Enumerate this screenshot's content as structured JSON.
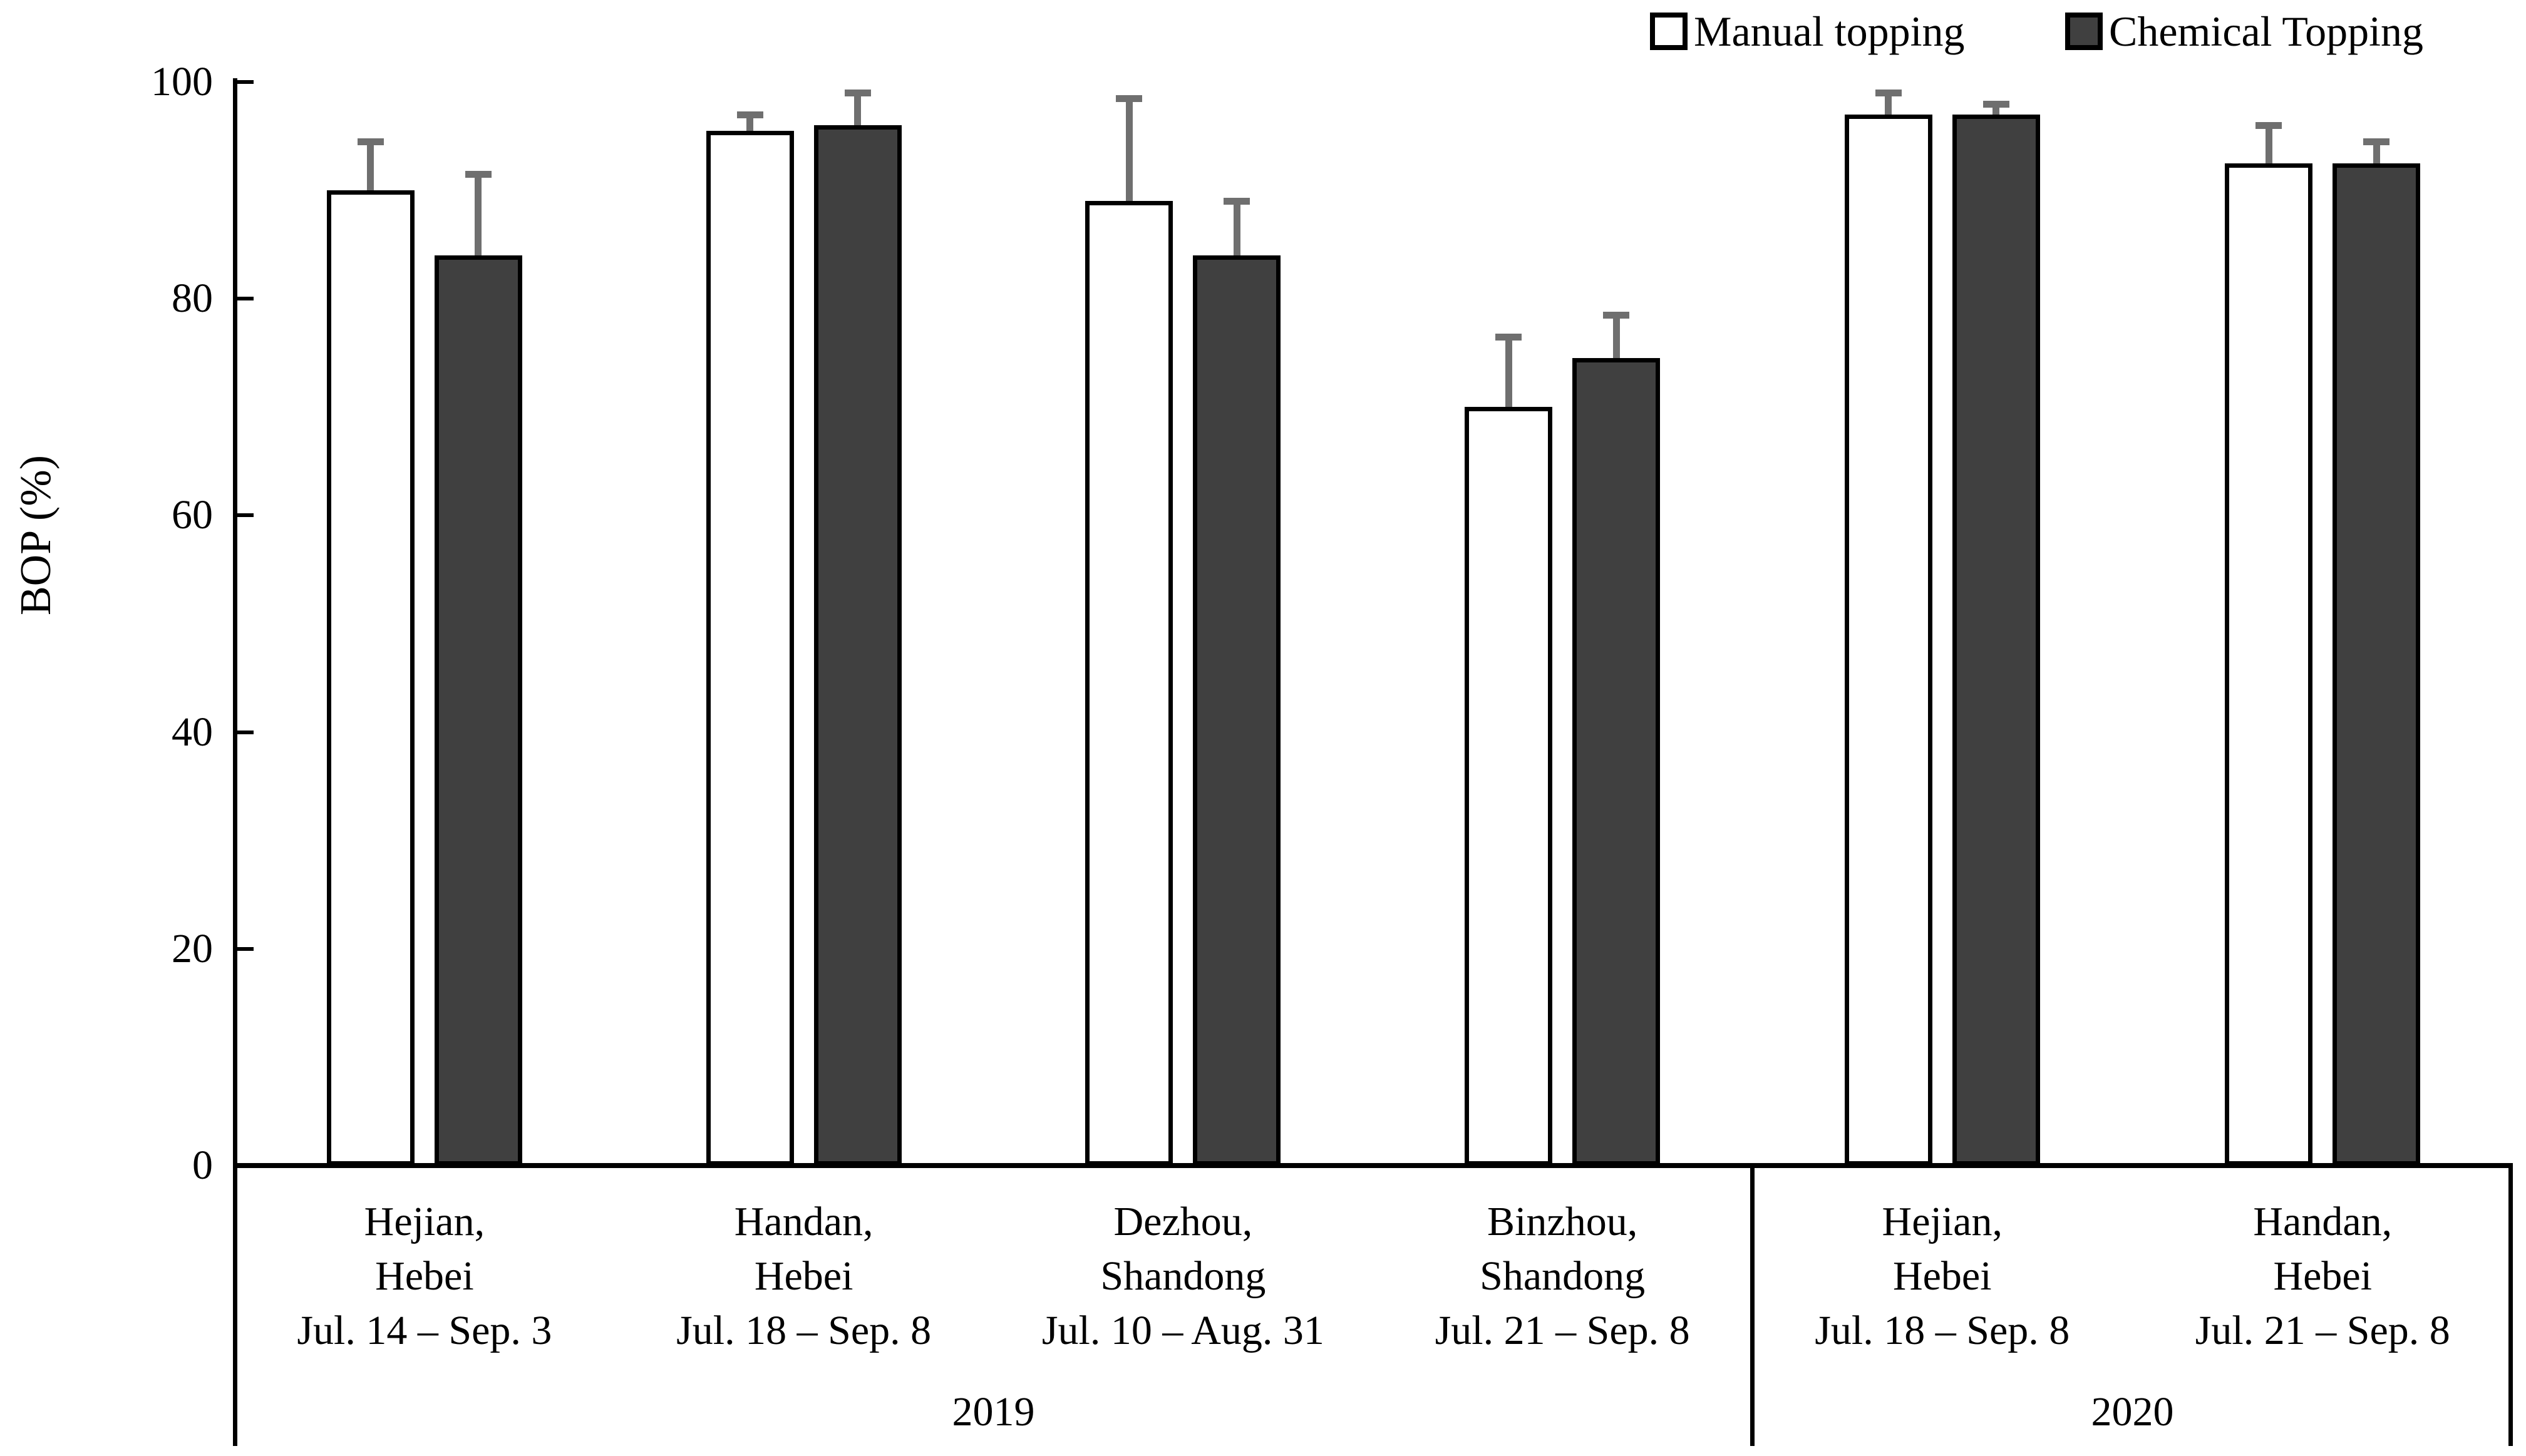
{
  "chart_data": {
    "type": "bar",
    "title": "",
    "ylabel": "BOP (%)",
    "ylim": [
      0,
      100
    ],
    "yticks": [
      0,
      20,
      40,
      60,
      80,
      100
    ],
    "grid": false,
    "legend_position": "top-right",
    "categories": [
      {
        "city": "Hejian,",
        "province": "Hebei",
        "dates": "Jul. 14 – Sep. 3",
        "year": "2019"
      },
      {
        "city": "Handan,",
        "province": "Hebei",
        "dates": "Jul. 18 – Sep. 8",
        "year": "2019"
      },
      {
        "city": "Dezhou,",
        "province": "Shandong",
        "dates": "Jul. 10 – Aug. 31",
        "year": "2019"
      },
      {
        "city": "Binzhou,",
        "province": "Shandong",
        "dates": "Jul. 21 – Sep. 8",
        "year": "2019"
      },
      {
        "city": "Hejian,",
        "province": "Hebei",
        "dates": "Jul. 18 – Sep. 8",
        "year": "2020"
      },
      {
        "city": "Handan,",
        "province": "Hebei",
        "dates": "Jul. 21 – Sep. 8",
        "year": "2020"
      }
    ],
    "year_groups": [
      {
        "label": "2019",
        "span": 4
      },
      {
        "label": "2020",
        "span": 2
      }
    ],
    "series": [
      {
        "name": "Manual topping",
        "fill": "#ffffff",
        "values": [
          90,
          95.5,
          89,
          70,
          97,
          92.5
        ],
        "errors": [
          4.5,
          1.5,
          9.5,
          6.5,
          2,
          3.5
        ]
      },
      {
        "name": "Chemical Topping",
        "fill": "#404040",
        "values": [
          84,
          96,
          84,
          74.5,
          97,
          92.5
        ],
        "errors": [
          7.5,
          3,
          5,
          4,
          1,
          2
        ]
      }
    ]
  },
  "legend": {
    "items": [
      {
        "label": "Manual topping",
        "swatch": "#ffffff"
      },
      {
        "label": "Chemical Topping",
        "swatch": "#404040"
      }
    ]
  },
  "axis": {
    "y_title": "BOP (%)"
  },
  "colors": {
    "bar_dark": "#404040",
    "error_bar": "#6f6f6f",
    "line": "#000000"
  }
}
